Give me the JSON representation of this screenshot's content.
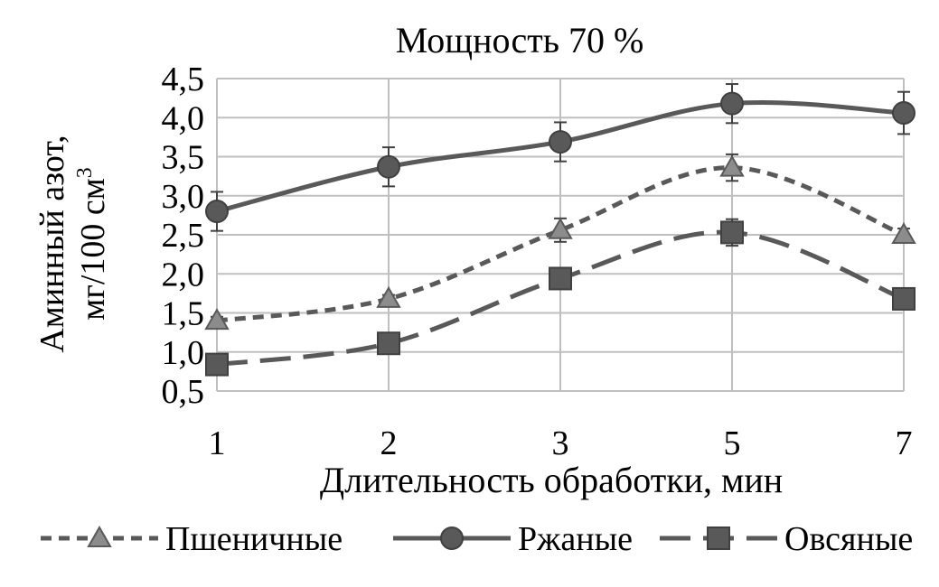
{
  "chart_data": {
    "type": "line",
    "title": "Мощность 70 %",
    "xlabel": "Длительность обработки, мин",
    "ylabel_line1": "Аминный азот,",
    "ylabel_line2": "мг/100 см",
    "ylabel_sup": "3",
    "categories": [
      "1",
      "2",
      "3",
      "5",
      "7"
    ],
    "ylim": [
      0.5,
      4.5
    ],
    "yticks": [
      "0,5",
      "1,0",
      "1,5",
      "2,0",
      "2,5",
      "3,0",
      "3,5",
      "4,0",
      "4,5"
    ],
    "grid": true,
    "legend_position": "bottom",
    "series": [
      {
        "name": "Пшеничные",
        "marker": "triangle",
        "dash": "short-dash",
        "color": "#595959",
        "marker_color": "#8c8c8c",
        "values": [
          1.4,
          1.68,
          2.56,
          3.36,
          2.5
        ],
        "error": [
          0.05,
          0.05,
          0.15,
          0.17,
          0.08
        ]
      },
      {
        "name": "Ржаные",
        "marker": "circle",
        "dash": "solid",
        "color": "#595959",
        "marker_color": "#595959",
        "values": [
          2.8,
          3.37,
          3.69,
          4.18,
          4.06
        ],
        "error": [
          0.25,
          0.25,
          0.25,
          0.25,
          0.27
        ]
      },
      {
        "name": "Овсяные",
        "marker": "square",
        "dash": "long-dash",
        "color": "#595959",
        "marker_color": "#595959",
        "values": [
          0.84,
          1.11,
          1.94,
          2.53,
          1.68
        ],
        "error": [
          0.03,
          0.03,
          0.05,
          0.17,
          0.03
        ]
      }
    ]
  }
}
